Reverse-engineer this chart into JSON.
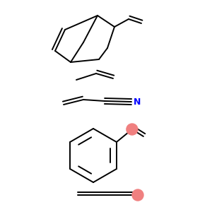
{
  "background_color": "#ffffff",
  "line_color": "#000000",
  "blue_color": "#0000ff",
  "red_color": "#f08080",
  "line_width": 1.4,
  "figsize": [
    3.0,
    3.0
  ],
  "dpi": 100
}
